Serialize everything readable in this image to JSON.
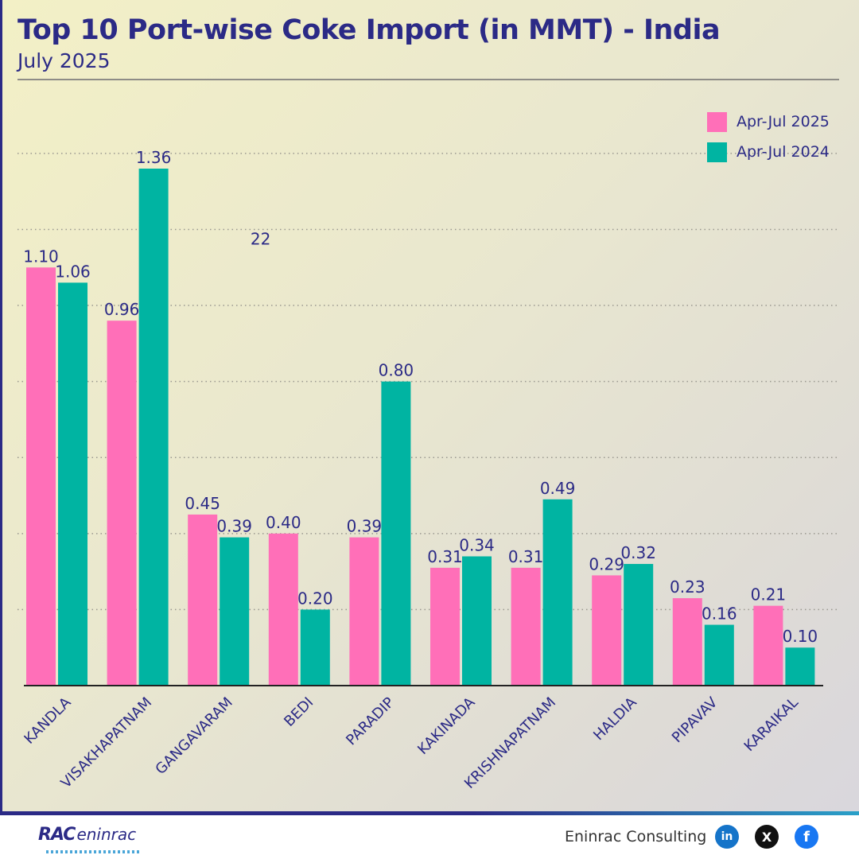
{
  "header": {
    "title": "Top 10 Port-wise Coke Import (in MMT) - India",
    "subtitle": "July 2025"
  },
  "colors": {
    "series_2025": "#ff6fb8",
    "series_2024": "#00b4a2",
    "text": "#2b2a86"
  },
  "chart_data": {
    "type": "bar",
    "title": "Top 10 Port-wise Coke Import (in MMT) - India",
    "subtitle": "July 2025",
    "xlabel": "",
    "ylabel": "",
    "categories": [
      "KANDLA",
      "VISAKHAPATNAM",
      "GANGAVARAM",
      "BEDI",
      "PARADIP",
      "KAKINADA",
      "KRISHNAPATNAM",
      "HALDIA",
      "PIPAVAV",
      "KARAIKAL"
    ],
    "series": [
      {
        "name": "Apr-Jul 2025",
        "values": [
          1.1,
          0.96,
          0.45,
          0.4,
          0.39,
          0.31,
          0.31,
          0.29,
          0.23,
          0.21
        ],
        "labels": [
          "1.10",
          "0.96",
          "0.45",
          "0.40",
          "0.39",
          "0.31",
          "0.31",
          "0.29",
          "0.23",
          "0.21"
        ]
      },
      {
        "name": "Apr-Jul 2024",
        "values": [
          1.06,
          1.36,
          0.39,
          0.2,
          0.8,
          0.34,
          0.49,
          0.32,
          0.16,
          0.1
        ],
        "labels": [
          "1.06",
          "1.36",
          "0.39",
          "0.20",
          "0.80",
          "0.34",
          "0.49",
          "0.32",
          "0.16",
          "0.10"
        ]
      }
    ],
    "annotations": [
      {
        "text": "22",
        "x": "GANGAVARAM",
        "y": 1.16
      }
    ],
    "ylim": [
      0,
      1.5
    ],
    "grid": true,
    "legend": "top-right"
  },
  "footer": {
    "logo_mark": "RAC",
    "logo_text": "eninrac",
    "company": "Eninrac Consulting",
    "social_icons": [
      "linkedin-icon",
      "x-icon",
      "facebook-icon"
    ],
    "linkedin_glyph": "in",
    "x_glyph": "X",
    "facebook_glyph": "f"
  }
}
